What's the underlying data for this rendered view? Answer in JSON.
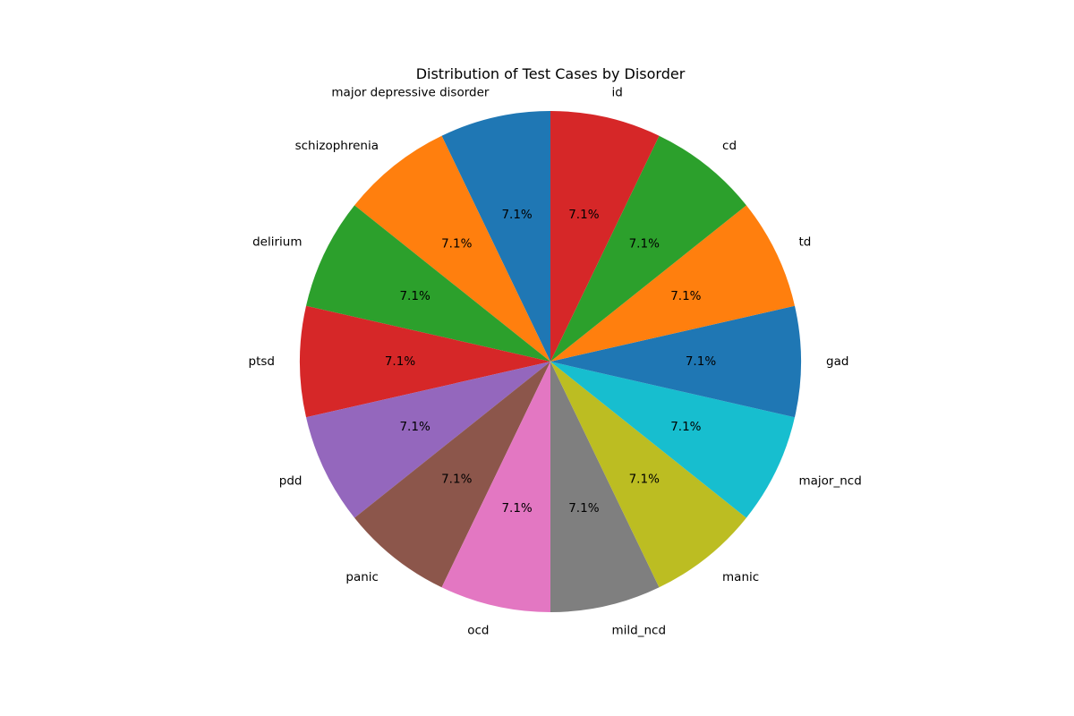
{
  "chart_data": {
    "type": "pie",
    "title": "Distribution of Test Cases by Disorder",
    "start_angle_deg": 90,
    "direction": "counterclockwise",
    "slices": [
      {
        "label": "major depressive disorder",
        "value": 1,
        "pct_label": "7.1%",
        "color": "#1f77b4"
      },
      {
        "label": "schizophrenia",
        "value": 1,
        "pct_label": "7.1%",
        "color": "#ff7f0e"
      },
      {
        "label": "delirium",
        "value": 1,
        "pct_label": "7.1%",
        "color": "#2ca02c"
      },
      {
        "label": "ptsd",
        "value": 1,
        "pct_label": "7.1%",
        "color": "#d62728"
      },
      {
        "label": "pdd",
        "value": 1,
        "pct_label": "7.1%",
        "color": "#9467bd"
      },
      {
        "label": "panic",
        "value": 1,
        "pct_label": "7.1%",
        "color": "#8c564b"
      },
      {
        "label": "ocd",
        "value": 1,
        "pct_label": "7.1%",
        "color": "#e377c2"
      },
      {
        "label": "mild_ncd",
        "value": 1,
        "pct_label": "7.1%",
        "color": "#7f7f7f"
      },
      {
        "label": "manic",
        "value": 1,
        "pct_label": "7.1%",
        "color": "#bcbd22"
      },
      {
        "label": "major_ncd",
        "value": 1,
        "pct_label": "7.1%",
        "color": "#17becf"
      },
      {
        "label": "gad",
        "value": 1,
        "pct_label": "7.1%",
        "color": "#1f77b4"
      },
      {
        "label": "td",
        "value": 1,
        "pct_label": "7.1%",
        "color": "#ff7f0e"
      },
      {
        "label": "cd",
        "value": 1,
        "pct_label": "7.1%",
        "color": "#2ca02c"
      },
      {
        "label": "id",
        "value": 1,
        "pct_label": "7.1%",
        "color": "#d62728"
      }
    ]
  }
}
